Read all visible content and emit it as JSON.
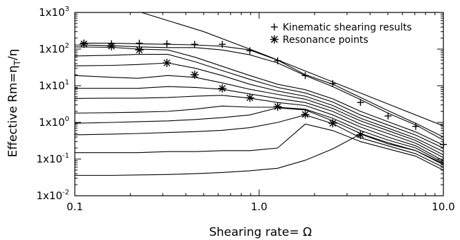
{
  "chart_data": {
    "type": "line",
    "xlabel": "Shearing rate= Ω",
    "ylabel": "Effective Rm=η",
    "ylabel_sub": "T",
    "ylabel_tail": "/η",
    "x_scale": "log",
    "y_scale": "log",
    "xlim": [
      0.1,
      10.0
    ],
    "ylim": [
      0.01,
      1000
    ],
    "x_ticks": [
      {
        "value": 0.1,
        "label": "0.1"
      },
      {
        "value": 1.0,
        "label": "1.0"
      },
      {
        "value": 10.0,
        "label": "10.0"
      }
    ],
    "y_ticks": [
      {
        "value": 0.01,
        "base": "1x10",
        "exp": "-2"
      },
      {
        "value": 0.1,
        "base": "1x10",
        "exp": "-1"
      },
      {
        "value": 1,
        "base": "1x10",
        "exp": "0"
      },
      {
        "value": 10,
        "base": "1x10",
        "exp": "1"
      },
      {
        "value": 100,
        "base": "1x10",
        "exp": "2"
      },
      {
        "value": 1000,
        "base": "1x10",
        "exp": "3"
      }
    ],
    "legend": [
      {
        "symbol": "+",
        "label": "Kinematic shearing results"
      },
      {
        "symbol": "*",
        "label": "Resonance points"
      }
    ],
    "legend_position": "top-right",
    "series": [
      {
        "x": [
          0.1,
          0.16,
          0.22,
          0.32,
          0.45,
          0.63,
          0.89,
          1.26,
          1.78,
          2.51,
          3.55,
          5.0,
          7.08,
          10.0
        ],
        "y": [
          0.036,
          0.036,
          0.037,
          0.038,
          0.04,
          0.043,
          0.048,
          0.056,
          0.093,
          0.19,
          0.48,
          0.26,
          0.17,
          0.075
        ]
      },
      {
        "x": [
          0.1,
          0.16,
          0.22,
          0.32,
          0.45,
          0.63,
          0.89,
          1.26,
          1.78,
          2.51,
          3.55,
          5.0,
          7.08,
          10.0
        ],
        "y": [
          0.15,
          0.15,
          0.15,
          0.16,
          0.16,
          0.17,
          0.17,
          0.2,
          0.9,
          0.6,
          0.3,
          0.19,
          0.12,
          0.05
        ]
      },
      {
        "x": [
          0.1,
          0.16,
          0.22,
          0.32,
          0.45,
          0.63,
          0.89,
          1.26,
          1.78,
          2.51,
          3.55,
          5.0,
          7.08,
          10.0
        ],
        "y": [
          0.46,
          0.48,
          0.5,
          0.53,
          0.56,
          0.61,
          0.72,
          1.0,
          1.6,
          0.93,
          0.38,
          0.23,
          0.14,
          0.06
        ]
      },
      {
        "x": [
          0.1,
          0.16,
          0.22,
          0.32,
          0.45,
          0.63,
          0.89,
          1.26,
          1.78,
          2.51,
          3.55,
          5.0,
          7.08,
          10.0
        ],
        "y": [
          0.95,
          1.0,
          1.05,
          1.1,
          1.2,
          1.35,
          1.6,
          2.5,
          2.2,
          1.1,
          0.5,
          0.28,
          0.17,
          0.07
        ]
      },
      {
        "x": [
          0.1,
          0.16,
          0.22,
          0.32,
          0.45,
          0.63,
          0.89,
          1.26,
          1.78,
          2.51,
          3.55,
          5.0,
          7.08,
          10.0
        ],
        "y": [
          1.8,
          1.85,
          1.9,
          2.0,
          2.3,
          2.8,
          2.6,
          2.6,
          2.3,
          1.3,
          0.6,
          0.33,
          0.2,
          0.08
        ]
      },
      {
        "x": [
          0.1,
          0.16,
          0.22,
          0.32,
          0.45,
          0.63,
          0.89,
          1.26,
          1.78,
          2.51,
          3.55,
          5.0,
          7.08,
          10.0
        ],
        "y": [
          4.5,
          4.6,
          4.6,
          4.8,
          5.2,
          5.5,
          4.6,
          3.5,
          2.9,
          1.6,
          0.75,
          0.4,
          0.23,
          0.09
        ]
      },
      {
        "x": [
          0.1,
          0.16,
          0.22,
          0.32,
          0.45,
          0.63,
          0.89,
          1.26,
          1.78,
          2.51,
          3.55,
          5.0,
          7.08,
          10.0
        ],
        "y": [
          8.5,
          8.5,
          8.5,
          9.5,
          9.0,
          8.0,
          6.0,
          4.5,
          3.5,
          2.0,
          0.9,
          0.5,
          0.27,
          0.11
        ]
      },
      {
        "x": [
          0.1,
          0.16,
          0.22,
          0.32,
          0.45,
          0.63,
          0.89,
          1.26,
          1.78,
          2.51,
          3.55,
          5.0,
          7.08,
          10.0
        ],
        "y": [
          19,
          17,
          16,
          19,
          17,
          12,
          8.0,
          5.8,
          4.3,
          2.4,
          1.1,
          0.6,
          0.32,
          0.13
        ]
      },
      {
        "x": [
          0.1,
          0.16,
          0.22,
          0.32,
          0.45,
          0.63,
          0.89,
          1.26,
          1.78,
          2.51,
          3.55,
          5.0,
          7.08,
          10.0
        ],
        "y": [
          35,
          36,
          38,
          42,
          30,
          19,
          11,
          7.2,
          5.2,
          2.9,
          1.3,
          0.7,
          0.37,
          0.16
        ]
      },
      {
        "x": [
          0.1,
          0.16,
          0.22,
          0.32,
          0.45,
          0.63,
          0.89,
          1.26,
          1.78,
          2.51,
          3.55,
          5.0,
          7.08,
          10.0
        ],
        "y": [
          65,
          68,
          72,
          72,
          45,
          26,
          15,
          9.0,
          6.4,
          3.6,
          1.6,
          0.85,
          0.45,
          0.2
        ]
      },
      {
        "x": [
          0.1,
          0.16,
          0.22,
          0.32,
          0.45,
          0.63,
          0.89,
          1.26,
          1.78,
          2.51,
          3.55,
          5.0,
          7.08,
          10.0
        ],
        "y": [
          115,
          112,
          100,
          95,
          60,
          34,
          19,
          11,
          7.8,
          4.4,
          2.0,
          1.05,
          0.55,
          0.24
        ]
      },
      {
        "x": [
          0.1,
          0.16,
          0.22,
          0.32,
          0.45,
          0.63,
          0.89,
          1.26,
          1.78,
          2.51,
          3.55,
          5.0,
          7.08,
          10.0
        ],
        "y": [
          130,
          125,
          115,
          110,
          110,
          95,
          70,
          42,
          19,
          9.5,
          4.2,
          1.8,
          0.85,
          0.33
        ]
      },
      {
        "x": [
          0.112,
          0.16,
          0.22,
          0.32,
          0.45,
          0.63,
          0.89,
          1.26,
          1.78,
          2.51,
          3.55,
          5.0,
          7.08,
          10.0
        ],
        "y": [
          145,
          145,
          140,
          135,
          130,
          120,
          95,
          50,
          20,
          11,
          4.8,
          2.1,
          0.95,
          0.4
        ]
      },
      {
        "x": [
          0.23,
          0.5,
          1.0,
          2.0,
          4.0,
          10.0
        ],
        "y": [
          1000,
          300,
          80,
          20,
          5,
          0.8
        ]
      }
    ],
    "kinematic_points": {
      "x": [
        0.112,
        0.158,
        0.224,
        0.316,
        0.447,
        0.631,
        0.891,
        1.26,
        1.78,
        2.51,
        3.55,
        5.01,
        7.08,
        10.0
      ],
      "y": [
        145,
        140,
        145,
        140,
        135,
        135,
        90,
        48,
        19,
        11.5,
        3.5,
        1.5,
        0.78,
        0.25
      ]
    },
    "resonance_points": {
      "x": [
        0.112,
        0.158,
        0.224,
        0.316,
        0.447,
        0.631,
        0.891,
        1.26,
        1.78,
        2.51,
        3.55
      ],
      "y": [
        140,
        120,
        95,
        42,
        20,
        8.5,
        4.7,
        2.7,
        1.65,
        0.95,
        0.46
      ]
    }
  }
}
